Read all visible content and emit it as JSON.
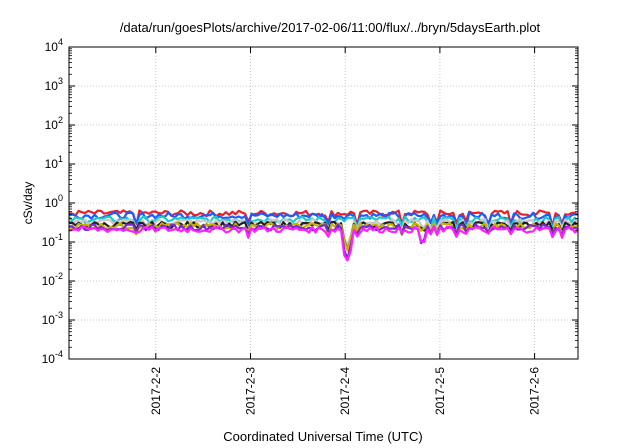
{
  "chart_data": {
    "type": "line",
    "title": "/data/run/goesPlots/archive/2017-02-06/11:00/flux/../bryn/5daysEarth.plot",
    "xlabel": "Coordinated Universal Time (UTC)",
    "ylabel": "cSv/day",
    "y_scale": "log",
    "ylim": [
      0.0001,
      10000
    ],
    "xlim": [
      "2017-02-01 02:00",
      "2017-02-06 11:00"
    ],
    "grid": true,
    "yticks": [
      {
        "base": "10",
        "exp": "-4"
      },
      {
        "base": "10",
        "exp": "-3"
      },
      {
        "base": "10",
        "exp": "-2"
      },
      {
        "base": "10",
        "exp": "-1"
      },
      {
        "base": "10",
        "exp": "0"
      },
      {
        "base": "10",
        "exp": "1"
      },
      {
        "base": "10",
        "exp": "2"
      },
      {
        "base": "10",
        "exp": "3"
      },
      {
        "base": "10",
        "exp": "4"
      }
    ],
    "xticks": [
      {
        "label": "2017-2-2",
        "value": "2017-02-02 00:00"
      },
      {
        "label": "2017-2-3",
        "value": "2017-02-03 00:00"
      },
      {
        "label": "2017-2-4",
        "value": "2017-02-04 00:00"
      },
      {
        "label": "2017-2-5",
        "value": "2017-02-05 00:00"
      },
      {
        "label": "2017-2-6",
        "value": "2017-02-06 00:00"
      }
    ],
    "series": [
      {
        "color": "#e8202a",
        "base": 0.55
      },
      {
        "color": "#1a5cff",
        "base": 0.48
      },
      {
        "color": "#20c8c8",
        "base": 0.38
      },
      {
        "color": "#c8c8c8",
        "base": 0.33
      },
      {
        "color": "#202020",
        "base": 0.28
      },
      {
        "color": "#c8b400",
        "base": 0.26
      },
      {
        "color": "#7a2ad0",
        "base": 0.24
      },
      {
        "color": "#ff20ff",
        "base": 0.21
      }
    ]
  }
}
